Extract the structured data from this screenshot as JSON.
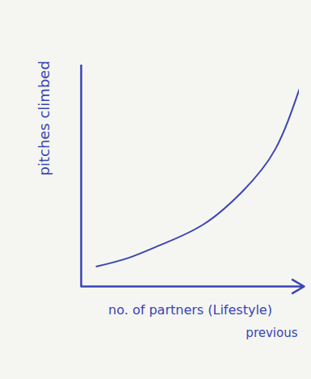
{
  "chart_data": {
    "type": "line",
    "x_label": "no. of partners (Lifestyle)",
    "y_label": "pitches climbed",
    "annotations": [
      "previous"
    ],
    "x": [
      0.7,
      2.2,
      3.7,
      5.6,
      7.4,
      8.9,
      10
    ],
    "values": [
      0.9,
      1.3,
      1.9,
      2.8,
      4.3,
      6.2,
      8.9
    ],
    "color": "#3b44b5",
    "xlim": [
      0,
      10
    ],
    "ylim": [
      0,
      10
    ],
    "tick_labels": false
  }
}
